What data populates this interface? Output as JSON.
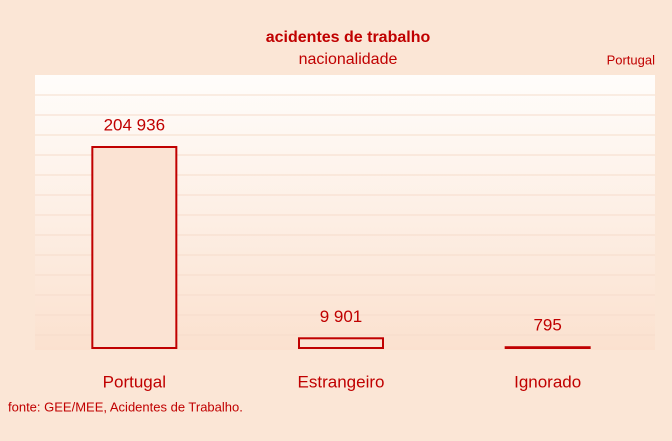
{
  "chart_data": {
    "type": "bar",
    "title": "acidentes de trabalho",
    "subtitle": "nacionalidade",
    "region_label": "Portugal",
    "categories": [
      "Portugal",
      "Estrangeiro",
      "Ignorado"
    ],
    "values": [
      204936,
      9901,
      795
    ],
    "value_labels": [
      "204 936",
      "9 901",
      "795"
    ],
    "color": "#c00000",
    "fill": "#fbe3d3",
    "source": "fonte: GEE/MEE, Acidentes de Trabalho."
  }
}
